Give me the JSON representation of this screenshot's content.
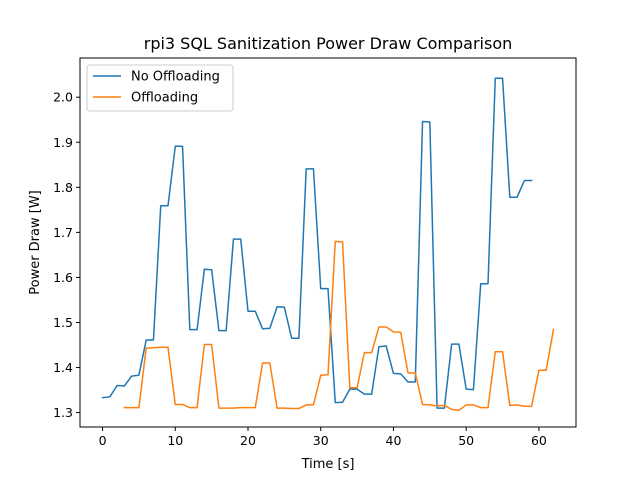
{
  "chart_data": {
    "type": "line",
    "title": "rpi3 SQL Sanitization Power Draw Comparison",
    "xlabel": "Time [s]",
    "ylabel": "Power Draw [W]",
    "xlim": [
      -3.1,
      65.1
    ],
    "ylim": [
      1.268,
      2.087
    ],
    "xticks": [
      0,
      10,
      20,
      30,
      40,
      50,
      60
    ],
    "yticks": [
      1.3,
      1.4,
      1.5,
      1.6,
      1.7,
      1.8,
      1.9,
      2.0
    ],
    "ytick_labels": [
      "1.3",
      "1.4",
      "1.5",
      "1.6",
      "1.7",
      "1.8",
      "1.9",
      "2.0"
    ],
    "grid": false,
    "legend_position": "upper-left",
    "series": [
      {
        "name": "No Offloading",
        "color": "#1f77b4",
        "x": [
          0,
          1,
          2,
          3,
          4,
          5,
          6,
          7,
          8,
          9,
          10,
          11,
          12,
          13,
          14,
          15,
          16,
          17,
          18,
          19,
          20,
          21,
          22,
          23,
          24,
          25,
          26,
          27,
          28,
          29,
          30,
          31,
          32,
          33,
          34,
          35,
          36,
          37,
          38,
          39,
          40,
          41,
          42,
          43,
          44,
          45,
          46,
          47,
          48,
          49,
          50,
          51,
          52,
          53,
          54,
          55,
          56,
          57,
          58,
          59
        ],
        "y": [
          1.333,
          1.335,
          1.36,
          1.359,
          1.381,
          1.383,
          1.461,
          1.461,
          1.759,
          1.759,
          1.891,
          1.891,
          1.484,
          1.484,
          1.618,
          1.617,
          1.482,
          1.482,
          1.685,
          1.685,
          1.525,
          1.525,
          1.486,
          1.487,
          1.535,
          1.534,
          1.465,
          1.465,
          1.841,
          1.841,
          1.575,
          1.575,
          1.322,
          1.323,
          1.352,
          1.352,
          1.341,
          1.341,
          1.446,
          1.448,
          1.387,
          1.386,
          1.368,
          1.368,
          1.946,
          1.945,
          1.31,
          1.31,
          1.452,
          1.452,
          1.352,
          1.351,
          1.586,
          1.586,
          2.042,
          2.042,
          1.778,
          1.778,
          1.815,
          1.815
        ]
      },
      {
        "name": "Offloading",
        "color": "#ff7f0e",
        "x": [
          3,
          4,
          5,
          6,
          7,
          8,
          9,
          10,
          11,
          12,
          13,
          14,
          15,
          16,
          17,
          18,
          19,
          20,
          21,
          22,
          23,
          24,
          25,
          26,
          27,
          28,
          29,
          30,
          31,
          32,
          33,
          34,
          35,
          36,
          37,
          38,
          39,
          40,
          41,
          42,
          43,
          44,
          45,
          46,
          47,
          48,
          49,
          50,
          51,
          52,
          53,
          54,
          55,
          56,
          57,
          58,
          59,
          60,
          61,
          62
        ],
        "y": [
          1.311,
          1.311,
          1.311,
          1.443,
          1.444,
          1.445,
          1.445,
          1.318,
          1.318,
          1.311,
          1.311,
          1.451,
          1.451,
          1.31,
          1.31,
          1.31,
          1.311,
          1.311,
          1.311,
          1.41,
          1.41,
          1.31,
          1.31,
          1.309,
          1.309,
          1.317,
          1.317,
          1.383,
          1.384,
          1.68,
          1.679,
          1.355,
          1.355,
          1.433,
          1.433,
          1.49,
          1.49,
          1.479,
          1.478,
          1.388,
          1.388,
          1.318,
          1.317,
          1.315,
          1.316,
          1.307,
          1.305,
          1.317,
          1.317,
          1.311,
          1.311,
          1.435,
          1.435,
          1.316,
          1.317,
          1.314,
          1.314,
          1.394,
          1.394,
          1.484
        ]
      }
    ]
  }
}
